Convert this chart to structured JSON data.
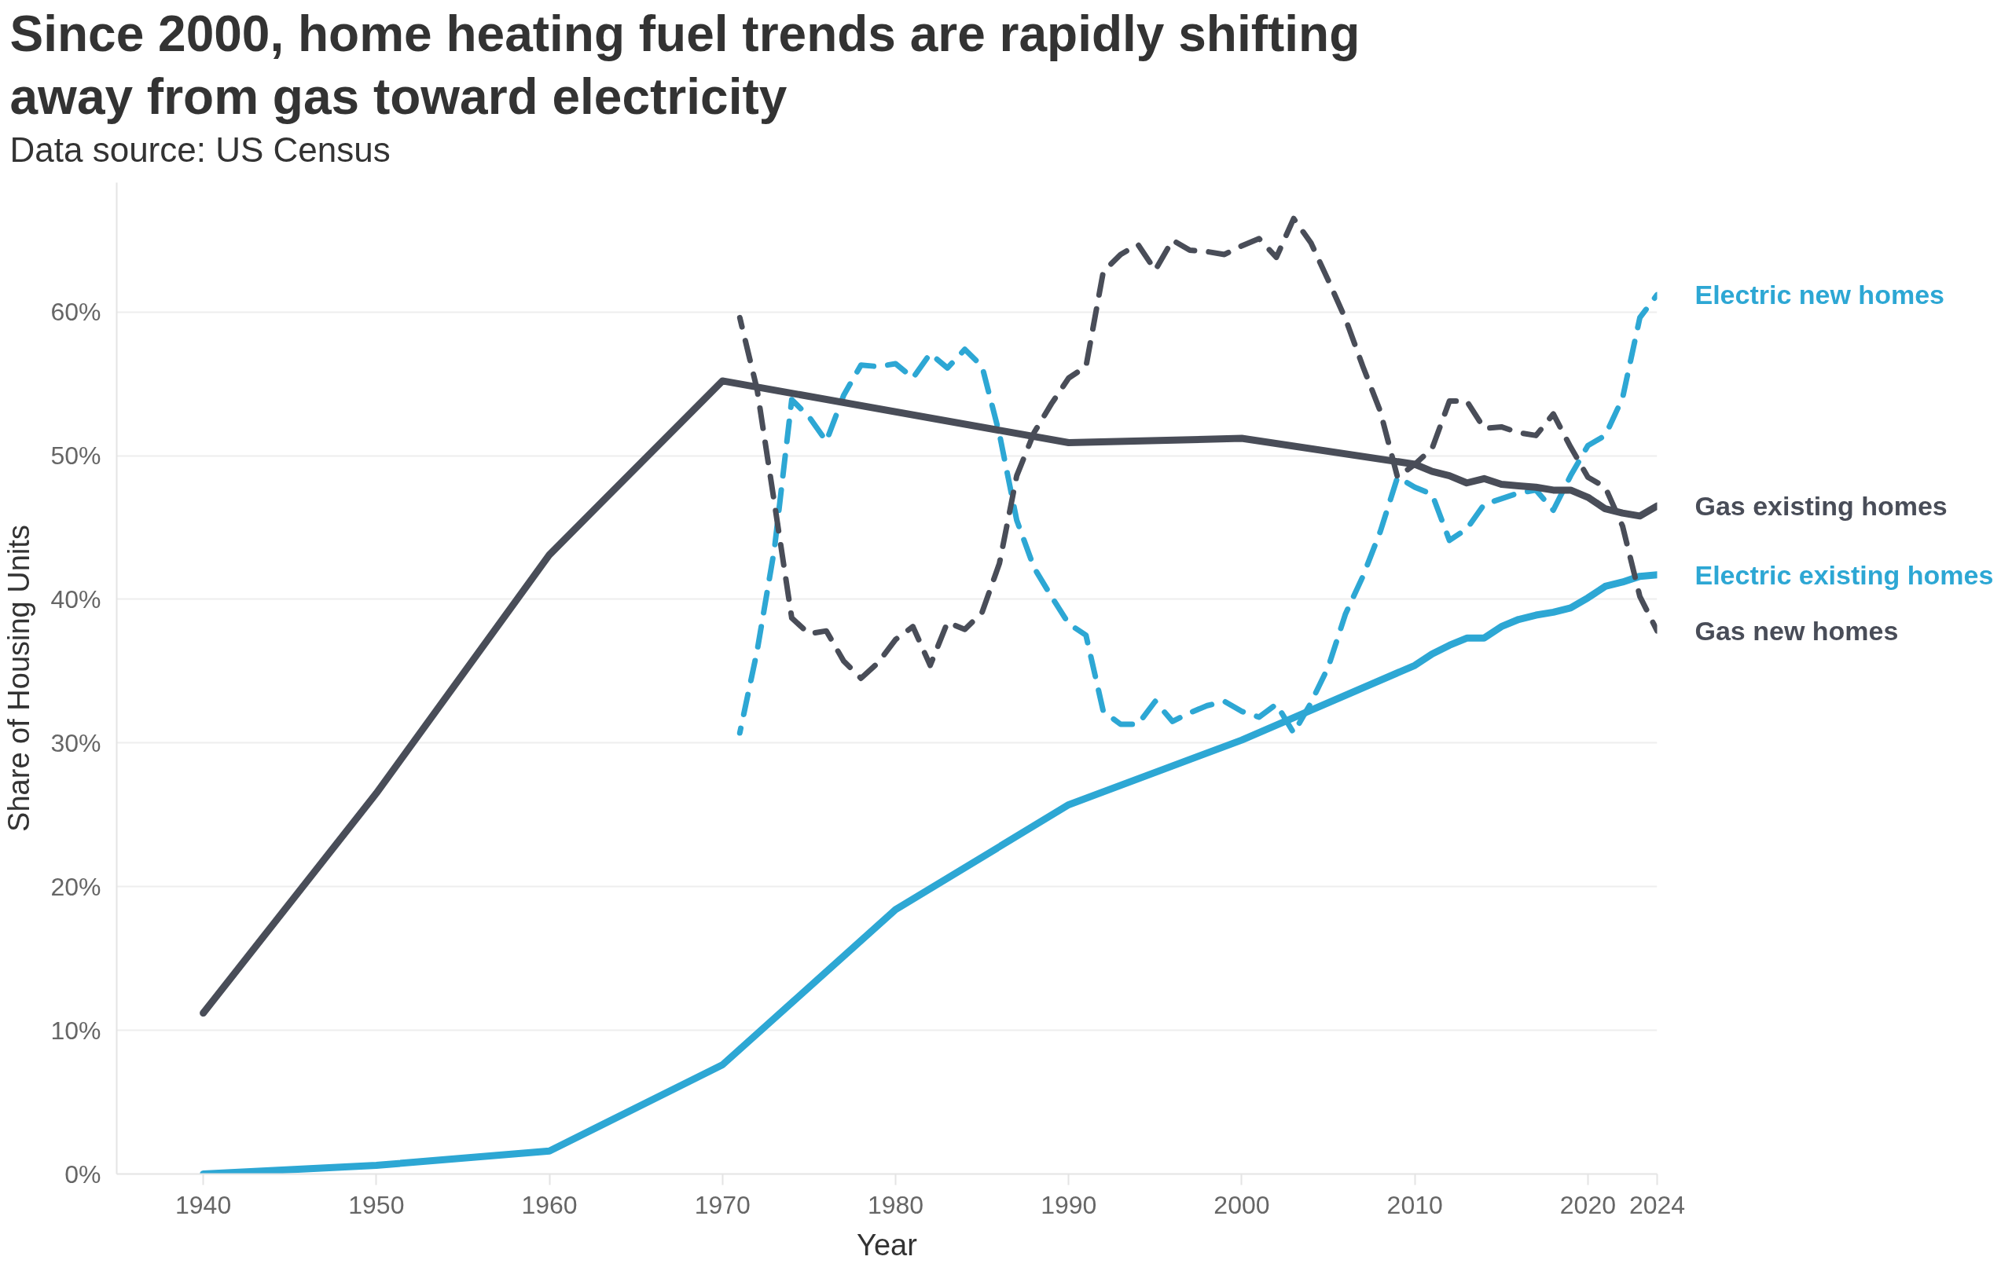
{
  "chart_data": {
    "type": "line",
    "title": "Since 2000, home heating fuel trends are rapidly shifting away from gas toward electricity",
    "subtitle": "Data source: US Census",
    "xlabel": "Year",
    "ylabel": "Share of Housing Units",
    "xlim": [
      1935,
      2024
    ],
    "xticks": [
      1940,
      1950,
      1960,
      1970,
      1980,
      1990,
      2000,
      2010,
      2020,
      2024
    ],
    "ylim": [
      0,
      69
    ],
    "yticks": [
      {
        "value": 0,
        "label": "0%"
      },
      {
        "value": 10,
        "label": "10%"
      },
      {
        "value": 20,
        "label": "20%"
      },
      {
        "value": 30,
        "label": "30%"
      },
      {
        "value": 40,
        "label": "40%"
      },
      {
        "value": 50,
        "label": "50%"
      },
      {
        "value": 60,
        "label": "60%"
      }
    ],
    "grid": "y",
    "series": [
      {
        "name": "Electric new homes",
        "color": "#2da7d4",
        "line_style": "dashed",
        "x": [
          1971,
          1972,
          1973,
          1974,
          1975,
          1976,
          1977,
          1978,
          1979,
          1980,
          1981,
          1982,
          1983,
          1984,
          1985,
          1986,
          1987,
          1988,
          1989,
          1990,
          1991,
          1992,
          1993,
          1994,
          1995,
          1996,
          1997,
          1998,
          1999,
          2000,
          2001,
          2002,
          2003,
          2004,
          2005,
          2006,
          2007,
          2008,
          2009,
          2010,
          2011,
          2012,
          2013,
          2014,
          2015,
          2016,
          2017,
          2018,
          2019,
          2020,
          2021,
          2022,
          2023,
          2024
        ],
        "values": [
          30.7,
          36.4,
          43.5,
          53.9,
          52.7,
          51.0,
          54.2,
          56.3,
          56.2,
          56.4,
          55.4,
          57.1,
          56.1,
          57.4,
          56.2,
          51.5,
          45.5,
          42.2,
          40.2,
          38.3,
          37.5,
          32.2,
          31.3,
          31.3,
          32.9,
          31.5,
          32.1,
          32.6,
          32.9,
          32.2,
          31.8,
          32.7,
          30.7,
          32.8,
          35.3,
          39.0,
          41.6,
          44.7,
          48.5,
          47.8,
          47.3,
          44.1,
          44.9,
          46.6,
          47.0,
          47.4,
          47.6,
          46.2,
          48.6,
          50.7,
          51.4,
          54.0,
          59.6,
          61.2
        ]
      },
      {
        "name": "Gas existing homes",
        "color": "#494d58",
        "line_style": "solid",
        "x": [
          1940,
          1950,
          1960,
          1970,
          1990,
          2000,
          2010,
          2011,
          2012,
          2013,
          2014,
          2015,
          2016,
          2017,
          2018,
          2019,
          2020,
          2021,
          2022,
          2023,
          2024
        ],
        "values": [
          11.2,
          26.5,
          43.1,
          55.2,
          50.9,
          51.2,
          49.4,
          48.9,
          48.6,
          48.1,
          48.4,
          48.0,
          47.9,
          47.8,
          47.6,
          47.6,
          47.1,
          46.3,
          46.0,
          45.8,
          46.5
        ]
      },
      {
        "name": "Electric existing homes",
        "color": "#2da7d4",
        "line_style": "solid",
        "x": [
          1940,
          1950,
          1960,
          1970,
          1980,
          1990,
          2000,
          2010,
          2011,
          2012,
          2013,
          2014,
          2015,
          2016,
          2017,
          2018,
          2019,
          2020,
          2021,
          2022,
          2023,
          2024
        ],
        "values": [
          0,
          0.6,
          1.6,
          7.6,
          18.4,
          25.7,
          30.2,
          35.4,
          36.2,
          36.8,
          37.3,
          37.3,
          38.1,
          38.6,
          38.9,
          39.1,
          39.4,
          40.1,
          40.9,
          41.2,
          41.6,
          41.7
        ]
      },
      {
        "name": "Gas new homes",
        "color": "#494d58",
        "line_style": "dashed",
        "x": [
          1971,
          1972,
          1973,
          1974,
          1975,
          1976,
          1977,
          1978,
          1979,
          1980,
          1981,
          1982,
          1983,
          1984,
          1985,
          1986,
          1987,
          1988,
          1989,
          1990,
          1991,
          1992,
          1993,
          1994,
          1995,
          1996,
          1997,
          1998,
          1999,
          2000,
          2001,
          2002,
          2003,
          2004,
          2005,
          2006,
          2007,
          2008,
          2009,
          2010,
          2011,
          2012,
          2013,
          2014,
          2015,
          2016,
          2017,
          2018,
          2019,
          2020,
          2021,
          2022,
          2023,
          2024
        ],
        "values": [
          59.6,
          54.6,
          46.7,
          38.7,
          37.6,
          37.8,
          35.7,
          34.5,
          35.6,
          37.2,
          38.1,
          35.4,
          38.4,
          37.9,
          39.1,
          42.5,
          48.6,
          51.6,
          53.6,
          55.4,
          56.2,
          62.8,
          64.0,
          64.7,
          62.9,
          65.0,
          64.3,
          64.2,
          64.0,
          64.6,
          65.1,
          63.8,
          66.5,
          64.8,
          62.2,
          59.5,
          56.2,
          53.1,
          48.5,
          49.4,
          50.5,
          53.8,
          53.8,
          51.9,
          52.0,
          51.6,
          51.4,
          52.9,
          50.6,
          48.5,
          47.8,
          45.1,
          40.2,
          37.8
        ]
      }
    ]
  }
}
